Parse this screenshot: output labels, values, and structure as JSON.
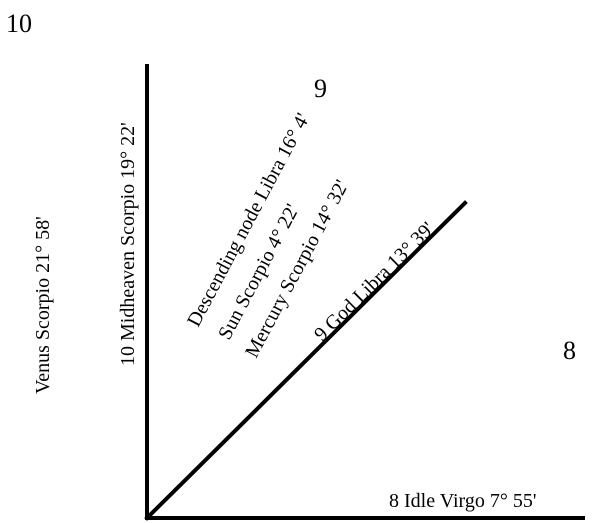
{
  "houses": {
    "h10": "10",
    "h9": "9",
    "h8": "8"
  },
  "labels": {
    "venus": "Venus Scorpio 21° 58'",
    "midheaven": "10 Midheaven Scorpio 19° 22'",
    "descending_node": "Descending node Libra 16° 4'",
    "sun": "Sun Scorpio 4° 22'",
    "mercury": "Mercury Scorpio 14° 32'",
    "god": "9 God Libra 13° 39'",
    "idle": "8 Idle Virgo 7° 55'"
  },
  "colors": {
    "ink": "#000000",
    "background": "#ffffff"
  }
}
